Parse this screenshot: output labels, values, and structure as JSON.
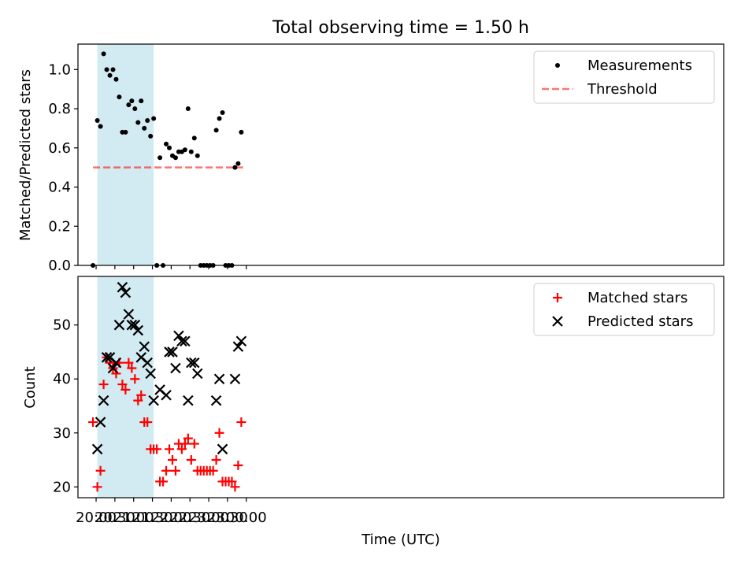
{
  "chart_data": [
    {
      "type": "scatter",
      "title": "Total observing time = 1.50 h",
      "ylabel": "Matched/Predicted stars",
      "xlabel": "",
      "ylim": [
        0,
        1.13
      ],
      "yticks": [
        "0.0",
        "0.2",
        "0.4",
        "0.6",
        "0.8",
        "1.0"
      ],
      "xlim_minutes": [
        -29,
        1003
      ],
      "legend": {
        "placement": "top-right",
        "entries": [
          "Measurements",
          "Threshold"
        ]
      },
      "highlight_span": {
        "start": "20:02",
        "end": "21:32",
        "color": "#add8e6"
      },
      "threshold": {
        "name": "Threshold",
        "value": 0.5,
        "x_start": "19:55",
        "x_end": "23:55",
        "color": "#ff0000"
      },
      "series": [
        {
          "name": "Measurements",
          "marker": "dot",
          "color": "#000000",
          "points": [
            [
              "19:55",
              0.0
            ],
            [
              "20:02",
              0.74
            ],
            [
              "20:07",
              0.71
            ],
            [
              "20:12",
              1.08
            ],
            [
              "20:17",
              1.0
            ],
            [
              "20:22",
              0.97
            ],
            [
              "20:27",
              1.0
            ],
            [
              "20:32",
              0.95
            ],
            [
              "20:37",
              0.86
            ],
            [
              "20:42",
              0.68
            ],
            [
              "20:47",
              0.68
            ],
            [
              "20:52",
              0.82
            ],
            [
              "20:57",
              0.84
            ],
            [
              "21:02",
              0.8
            ],
            [
              "21:07",
              0.73
            ],
            [
              "21:12",
              0.84
            ],
            [
              "21:17",
              0.7
            ],
            [
              "21:22",
              0.74
            ],
            [
              "21:27",
              0.66
            ],
            [
              "21:32",
              0.75
            ],
            [
              "21:37",
              0.0
            ],
            [
              "21:42",
              0.55
            ],
            [
              "21:47",
              0.0
            ],
            [
              "21:52",
              0.62
            ],
            [
              "21:57",
              0.6
            ],
            [
              "22:02",
              0.56
            ],
            [
              "22:07",
              0.55
            ],
            [
              "22:12",
              0.58
            ],
            [
              "22:17",
              0.58
            ],
            [
              "22:22",
              0.59
            ],
            [
              "22:27",
              0.8
            ],
            [
              "22:32",
              0.58
            ],
            [
              "22:37",
              0.65
            ],
            [
              "22:42",
              0.56
            ],
            [
              "22:47",
              0.0
            ],
            [
              "22:52",
              0.0
            ],
            [
              "22:57",
              0.0
            ],
            [
              "23:02",
              0.0
            ],
            [
              "23:07",
              0.0
            ],
            [
              "23:12",
              0.69
            ],
            [
              "23:17",
              0.75
            ],
            [
              "23:22",
              0.78
            ],
            [
              "23:27",
              0.0
            ],
            [
              "23:32",
              0.0
            ],
            [
              "23:37",
              0.0
            ],
            [
              "23:42",
              0.5
            ],
            [
              "23:47",
              0.52
            ],
            [
              "23:52",
              0.68
            ]
          ]
        }
      ]
    },
    {
      "type": "scatter",
      "ylabel": "Count",
      "xlabel": "Time (UTC)",
      "ylim": [
        18,
        59
      ],
      "yticks": [
        "20",
        "30",
        "40",
        "50"
      ],
      "xticks": [
        "20:00",
        "20:30",
        "21:00",
        "21:30",
        "22:00",
        "22:30",
        "23:00",
        "23:30",
        "00:00"
      ],
      "xlim_minutes": [
        -29,
        1003
      ],
      "legend": {
        "placement": "top-right",
        "entries": [
          "Matched stars",
          "Predicted stars"
        ]
      },
      "highlight_span": {
        "start": "20:02",
        "end": "21:32",
        "color": "#add8e6"
      },
      "series": [
        {
          "name": "Matched stars",
          "marker": "plus",
          "color": "#ff0000",
          "points": [
            [
              "19:55",
              32
            ],
            [
              "20:02",
              20
            ],
            [
              "20:07",
              23
            ],
            [
              "20:12",
              39
            ],
            [
              "20:17",
              44
            ],
            [
              "20:22",
              43
            ],
            [
              "20:27",
              42
            ],
            [
              "20:32",
              41
            ],
            [
              "20:37",
              43
            ],
            [
              "20:42",
              39
            ],
            [
              "20:47",
              38
            ],
            [
              "20:52",
              43
            ],
            [
              "20:57",
              42
            ],
            [
              "21:02",
              40
            ],
            [
              "21:07",
              36
            ],
            [
              "21:12",
              37
            ],
            [
              "21:17",
              32
            ],
            [
              "21:22",
              32
            ],
            [
              "21:27",
              27
            ],
            [
              "21:32",
              27
            ],
            [
              "21:37",
              27
            ],
            [
              "21:42",
              21
            ],
            [
              "21:47",
              21
            ],
            [
              "21:52",
              23
            ],
            [
              "21:57",
              27
            ],
            [
              "22:02",
              25
            ],
            [
              "22:07",
              23
            ],
            [
              "22:12",
              28
            ],
            [
              "22:17",
              27
            ],
            [
              "22:22",
              28
            ],
            [
              "22:27",
              29
            ],
            [
              "22:32",
              25
            ],
            [
              "22:37",
              28
            ],
            [
              "22:42",
              23
            ],
            [
              "22:47",
              23
            ],
            [
              "22:52",
              23
            ],
            [
              "22:57",
              23
            ],
            [
              "23:02",
              23
            ],
            [
              "23:07",
              23
            ],
            [
              "23:12",
              25
            ],
            [
              "23:17",
              30
            ],
            [
              "23:22",
              21
            ],
            [
              "23:27",
              21
            ],
            [
              "23:32",
              21
            ],
            [
              "23:37",
              21
            ],
            [
              "23:42",
              20
            ],
            [
              "23:47",
              24
            ],
            [
              "23:52",
              32
            ]
          ]
        },
        {
          "name": "Predicted stars",
          "marker": "x",
          "color": "#000000",
          "points": [
            [
              "20:02",
              27
            ],
            [
              "20:07",
              32
            ],
            [
              "20:12",
              36
            ],
            [
              "20:17",
              44
            ],
            [
              "20:22",
              44
            ],
            [
              "20:27",
              42
            ],
            [
              "20:32",
              43
            ],
            [
              "20:37",
              50
            ],
            [
              "20:42",
              57
            ],
            [
              "20:47",
              56
            ],
            [
              "20:52",
              52
            ],
            [
              "20:57",
              50
            ],
            [
              "21:02",
              50
            ],
            [
              "21:07",
              49
            ],
            [
              "21:12",
              44
            ],
            [
              "21:17",
              46
            ],
            [
              "21:22",
              43
            ],
            [
              "21:27",
              41
            ],
            [
              "21:32",
              36
            ],
            [
              "21:42",
              38
            ],
            [
              "21:52",
              37
            ],
            [
              "21:57",
              45
            ],
            [
              "22:02",
              45
            ],
            [
              "22:07",
              42
            ],
            [
              "22:12",
              48
            ],
            [
              "22:17",
              47
            ],
            [
              "22:22",
              47
            ],
            [
              "22:27",
              36
            ],
            [
              "22:32",
              43
            ],
            [
              "22:37",
              43
            ],
            [
              "22:42",
              41
            ],
            [
              "23:12",
              36
            ],
            [
              "23:17",
              40
            ],
            [
              "23:22",
              27
            ],
            [
              "23:42",
              40
            ],
            [
              "23:47",
              46
            ],
            [
              "23:52",
              47
            ]
          ]
        }
      ]
    }
  ]
}
